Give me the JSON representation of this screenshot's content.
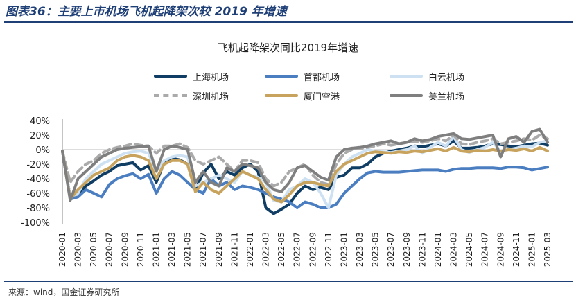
{
  "figure_title": "图表36：主要上市机场飞机起降架次较 2019 年增速",
  "source": "来源：wind，国金证券研究所",
  "chart_data": {
    "type": "line",
    "title": "飞机起降架次同比2019年增速",
    "xlabel": "",
    "ylabel": "",
    "ylim": [
      -100,
      40
    ],
    "yticks": [
      40,
      20,
      0,
      -20,
      -40,
      -60,
      -80,
      -100
    ],
    "ytick_labels": [
      "40%",
      "20%",
      "0%",
      "-20%",
      "-40%",
      "-60%",
      "-80%",
      "-100%"
    ],
    "grid": false,
    "legend_position": "top",
    "x": [
      "2020-01",
      "2020-02",
      "2020-03",
      "2020-04",
      "2020-05",
      "2020-06",
      "2020-07",
      "2020-08",
      "2020-09",
      "2020-10",
      "2020-11",
      "2020-12",
      "2021-01",
      "2021-02",
      "2021-03",
      "2021-04",
      "2021-05",
      "2021-06",
      "2021-07",
      "2021-08",
      "2021-09",
      "2021-10",
      "2021-11",
      "2021-12",
      "2022-01",
      "2022-02",
      "2022-03",
      "2022-04",
      "2022-05",
      "2022-06",
      "2022-07",
      "2022-08",
      "2022-09",
      "2022-10",
      "2022-11",
      "2022-12",
      "2023-01",
      "2023-02",
      "2023-03",
      "2023-04",
      "2023-05",
      "2023-06",
      "2023-07",
      "2023-08",
      "2023-09",
      "2023-10",
      "2023-11",
      "2023-12",
      "2024-01",
      "2024-02",
      "2024-03",
      "2024-04",
      "2024-05",
      "2024-06",
      "2024-07",
      "2024-08",
      "2024-09",
      "2024-10",
      "2024-11",
      "2024-12",
      "2025-01",
      "2025-02",
      "2025-03"
    ],
    "xtick_labels": [
      "2020-01",
      "2020-03",
      "2020-05",
      "2020-07",
      "2020-09",
      "2020-11",
      "2021-01",
      "2021-03",
      "2021-05",
      "2021-07",
      "2021-09",
      "2021-11",
      "2022-01",
      "2022-03",
      "2022-05",
      "2022-07",
      "2022-09",
      "2022-11",
      "2023-01",
      "2023-03",
      "2023-05",
      "2023-07",
      "2023-09",
      "2023-11",
      "2024-01",
      "2024-03",
      "2024-05",
      "2024-07",
      "2024-09",
      "2024-11",
      "2025-01",
      "2025-03"
    ],
    "series": [
      {
        "name": "上海机场",
        "color": "#0f3d63",
        "dash": false,
        "values": [
          -2,
          -65,
          -60,
          -50,
          -43,
          -35,
          -30,
          -22,
          -20,
          -18,
          -28,
          -22,
          -45,
          -18,
          -12,
          -14,
          -20,
          -55,
          -32,
          -20,
          -40,
          -30,
          -35,
          -25,
          -20,
          -30,
          -80,
          -88,
          -82,
          -75,
          -60,
          -50,
          -55,
          -52,
          -55,
          -38,
          -35,
          -25,
          -25,
          -20,
          -10,
          -5,
          -2,
          0,
          2,
          5,
          4,
          6,
          8,
          5,
          12,
          2,
          2,
          3,
          5,
          8,
          7,
          5,
          4,
          6,
          8,
          9,
          6
        ]
      },
      {
        "name": "首都机场",
        "color": "#4a7ec1",
        "dash": false,
        "values": [
          -2,
          -68,
          -65,
          -55,
          -60,
          -65,
          -48,
          -40,
          -36,
          -33,
          -40,
          -34,
          -60,
          -40,
          -30,
          -35,
          -45,
          -55,
          -60,
          -40,
          -50,
          -45,
          -55,
          -50,
          -52,
          -55,
          -60,
          -65,
          -68,
          -72,
          -80,
          -72,
          -75,
          -80,
          -80,
          -75,
          -60,
          -50,
          -40,
          -32,
          -30,
          -31,
          -31,
          -31,
          -30,
          -29,
          -28,
          -28,
          -28,
          -30,
          -27,
          -26,
          -26,
          -25,
          -25,
          -25,
          -26,
          -24,
          -24,
          -25,
          -28,
          -26,
          -24
        ]
      },
      {
        "name": "白云机场",
        "color": "#cde1f2",
        "dash": false,
        "values": [
          -2,
          -65,
          -60,
          -40,
          -30,
          -20,
          -15,
          -10,
          -5,
          -3,
          -2,
          -5,
          -30,
          -15,
          -10,
          -8,
          -10,
          -50,
          -45,
          -40,
          -35,
          -40,
          -45,
          -30,
          -35,
          -38,
          -45,
          -70,
          -72,
          -55,
          -50,
          -40,
          -45,
          -60,
          -80,
          -35,
          -20,
          -10,
          -5,
          0,
          -2,
          -3,
          -4,
          -2,
          0,
          5,
          -5,
          3,
          10,
          5,
          18,
          0,
          -4,
          0,
          3,
          10,
          -2,
          0,
          2,
          5,
          4,
          10,
          12
        ]
      },
      {
        "name": "深圳机场",
        "color": "#aaaaaa",
        "dash": true,
        "values": [
          -2,
          -45,
          -30,
          -20,
          -15,
          -5,
          0,
          3,
          5,
          8,
          6,
          5,
          -5,
          5,
          5,
          8,
          3,
          -15,
          -20,
          -15,
          -10,
          -20,
          -30,
          -15,
          -15,
          -18,
          -40,
          -50,
          -45,
          -30,
          -25,
          -20,
          -35,
          -45,
          -48,
          -20,
          -5,
          0,
          2,
          3,
          5,
          8,
          6,
          8,
          10,
          11,
          10,
          12,
          15,
          12,
          20,
          8,
          7,
          10,
          12,
          15,
          8,
          10,
          12,
          15,
          13,
          20,
          15
        ]
      },
      {
        "name": "厦门空港",
        "color": "#c8a35d",
        "dash": false,
        "values": [
          -2,
          -68,
          -55,
          -45,
          -35,
          -30,
          -25,
          -15,
          -10,
          -8,
          -10,
          -15,
          -40,
          -20,
          -15,
          -15,
          -20,
          -58,
          -45,
          -55,
          -60,
          -50,
          -40,
          -30,
          -35,
          -40,
          -55,
          -68,
          -72,
          -62,
          -50,
          -45,
          -45,
          -48,
          -50,
          -30,
          -20,
          -15,
          -10,
          -5,
          -3,
          -4,
          -5,
          -3,
          -4,
          -2,
          -3,
          -1,
          1,
          -2,
          3,
          -2,
          -3,
          -1,
          -2,
          0,
          -2,
          0,
          -1,
          1,
          -2,
          3,
          -2
        ]
      },
      {
        "name": "美兰机场",
        "color": "#7f7f7f",
        "dash": false,
        "values": [
          -2,
          -70,
          -40,
          -30,
          -20,
          -10,
          -5,
          0,
          2,
          3,
          4,
          5,
          -30,
          0,
          5,
          3,
          0,
          -45,
          -30,
          -45,
          -50,
          -25,
          -30,
          -20,
          -22,
          -25,
          -45,
          -55,
          -58,
          -45,
          -25,
          -22,
          -30,
          -38,
          -42,
          -10,
          0,
          2,
          3,
          5,
          8,
          10,
          12,
          8,
          10,
          15,
          12,
          14,
          18,
          20,
          22,
          15,
          14,
          16,
          18,
          20,
          -10,
          15,
          18,
          10,
          25,
          28,
          10
        ]
      }
    ]
  }
}
